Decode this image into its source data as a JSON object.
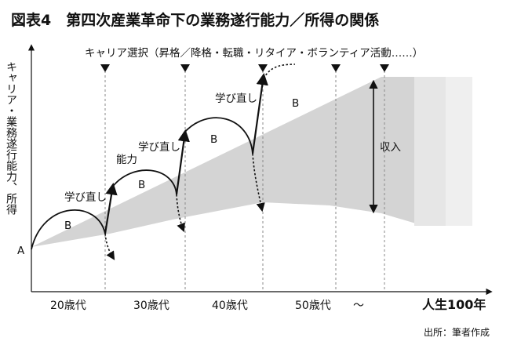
{
  "title": "図表4　第四次産業革命下の業務遂行能力／所得の関係",
  "career_choice_label": "キャリア選択（昇格／降格・転職・リタイア・ボランティア活動……）",
  "y_axis_label": "キャリア・業務遂行能力、所得",
  "ability_label": "能力",
  "income_label": "収入",
  "relearn_label": "学び直し",
  "start_label": "A",
  "phase_label": "B",
  "x_labels": [
    "20歳代",
    "30歳代",
    "40歳代",
    "50歳代",
    "〜"
  ],
  "x_end_label": "人生100年",
  "source": "出所：筆者作成"
}
